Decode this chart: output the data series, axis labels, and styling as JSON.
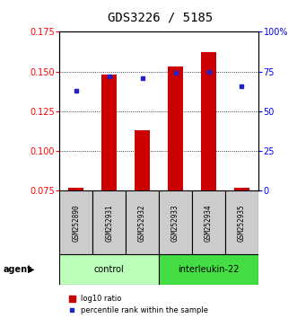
{
  "title": "GDS3226 / 5185",
  "samples": [
    "GSM252890",
    "GSM252931",
    "GSM252932",
    "GSM252933",
    "GSM252934",
    "GSM252935"
  ],
  "log10_ratio": [
    0.077,
    0.148,
    0.113,
    0.153,
    0.162,
    0.077
  ],
  "percentile_rank": [
    63,
    72,
    71,
    74,
    75,
    66
  ],
  "ylim_left": [
    0.075,
    0.175
  ],
  "ylim_right": [
    0,
    100
  ],
  "yticks_left": [
    0.075,
    0.1,
    0.125,
    0.15,
    0.175
  ],
  "yticks_right": [
    0,
    25,
    50,
    75,
    100
  ],
  "bar_color": "#cc0000",
  "dot_color": "#2222cc",
  "bar_base": 0.075,
  "control_color": "#bbffbb",
  "interleukin_color": "#44dd44",
  "sample_box_color": "#cccccc",
  "legend_bar_label": "log10 ratio",
  "legend_dot_label": "percentile rank within the sample",
  "title_fontsize": 10,
  "tick_fontsize": 7,
  "sample_fontsize": 5.5,
  "group_fontsize": 7,
  "legend_fontsize": 6
}
